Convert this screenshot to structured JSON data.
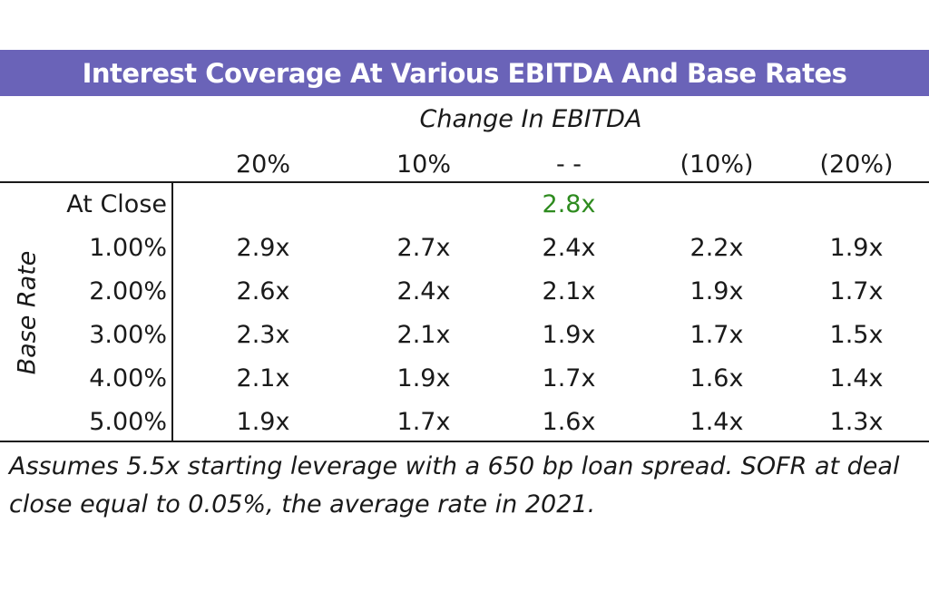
{
  "chart_data": {
    "type": "table",
    "title": "Interest Coverage At Various EBITDA And Base Rates",
    "column_group_label": "Change In EBITDA",
    "row_axis_label": "Base Rate",
    "columns": [
      "20%",
      "10%",
      "- -",
      "(10%)",
      "(20%)"
    ],
    "at_close": {
      "label": "At Close",
      "value": "2.8x",
      "color": "#2e8b1f"
    },
    "rows": [
      {
        "label": "1.00%",
        "values": [
          "2.9x",
          "2.7x",
          "2.4x",
          "2.2x",
          "1.9x"
        ]
      },
      {
        "label": "2.00%",
        "values": [
          "2.6x",
          "2.4x",
          "2.1x",
          "1.9x",
          "1.7x"
        ]
      },
      {
        "label": "3.00%",
        "values": [
          "2.3x",
          "2.1x",
          "1.9x",
          "1.7x",
          "1.5x"
        ]
      },
      {
        "label": "4.00%",
        "values": [
          "2.1x",
          "1.9x",
          "1.7x",
          "1.6x",
          "1.4x"
        ]
      },
      {
        "label": "5.00%",
        "values": [
          "1.9x",
          "1.7x",
          "1.6x",
          "1.4x",
          "1.3x"
        ]
      }
    ]
  },
  "footnote": "Assumes 5.5x starting leverage with a 650 bp loan spread. SOFR at deal close equal to 0.05%, the average rate in 2021.",
  "colors": {
    "title_bar": "#6a63b8",
    "text": "#1a1a1a"
  }
}
